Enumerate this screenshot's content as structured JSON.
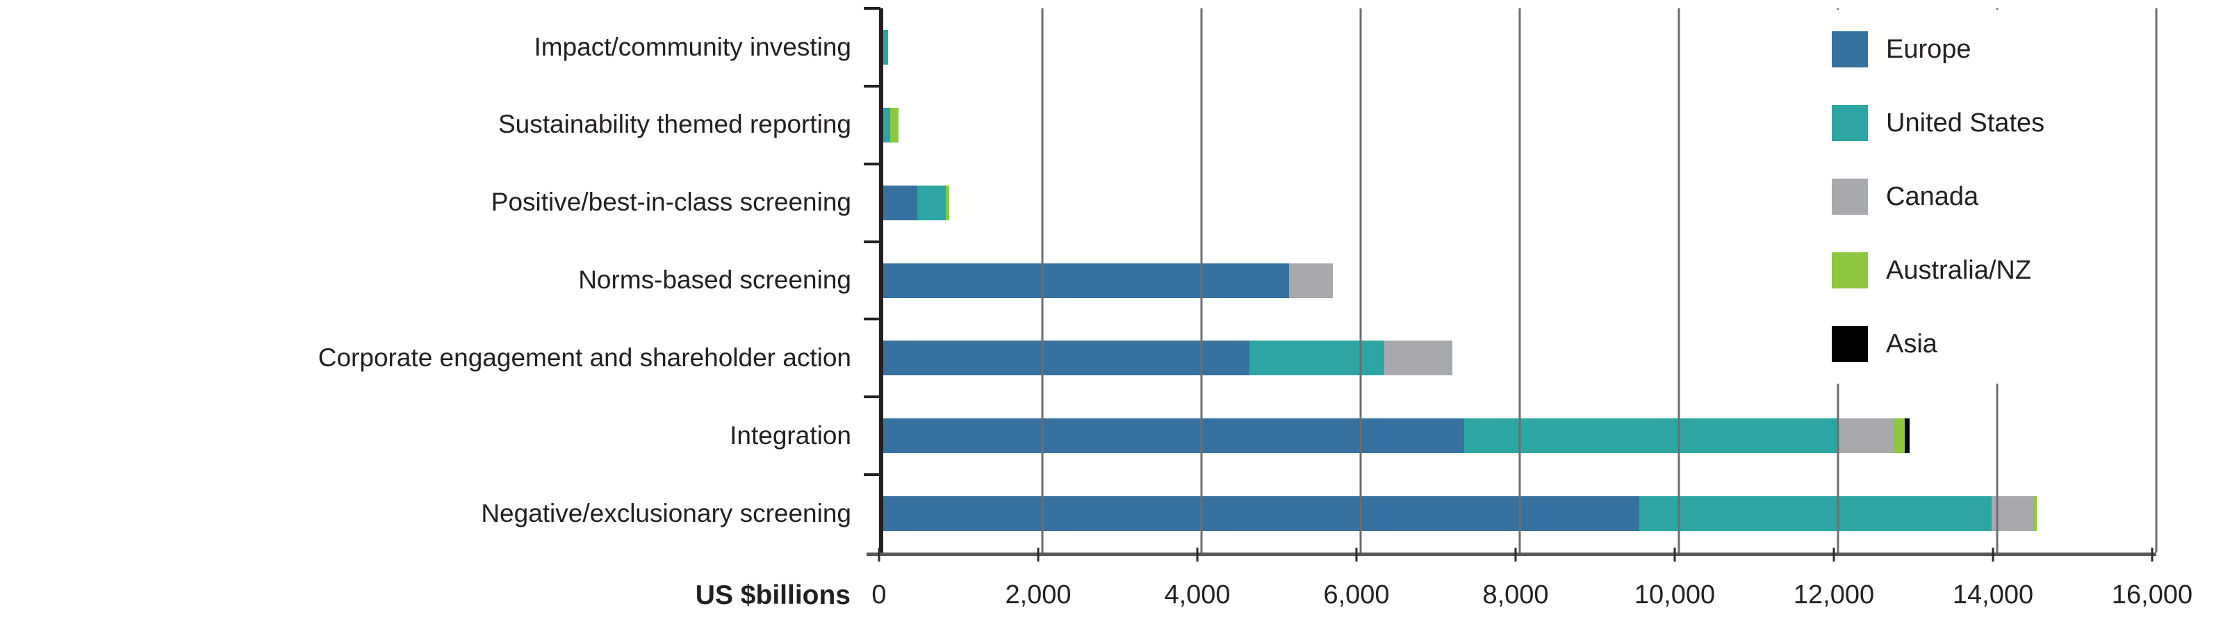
{
  "chart_data": {
    "type": "bar",
    "orientation": "horizontal-stacked",
    "title": "",
    "xlabel": "US $billions",
    "ylabel": "",
    "x_min": 0,
    "x_max": 16000,
    "x_tick_step": 2000,
    "x_ticks": [
      "0",
      "2,000",
      "4,000",
      "6,000",
      "8,000",
      "10,000",
      "12,000",
      "14,000",
      "16,000"
    ],
    "grid": true,
    "legend_position": "top-right-inside",
    "categories": [
      "Impact/community investing",
      "Sustainability themed reporting",
      "Positive/best-in-class screening",
      "Norms-based screening",
      "Corporate engagement and shareholder action",
      "Integration",
      "Negative/exclusionary screening"
    ],
    "series": [
      {
        "name": "Europe",
        "color": "#36719f",
        "values": [
          0,
          0,
          430,
          5100,
          4600,
          7300,
          9500
        ]
      },
      {
        "name": "United States",
        "color": "#2da5a2",
        "values": [
          60,
          90,
          360,
          0,
          1700,
          4700,
          4430
        ]
      },
      {
        "name": "Canada",
        "color": "#a7a9ac",
        "values": [
          0,
          0,
          0,
          550,
          850,
          700,
          520
        ]
      },
      {
        "name": "Australia/NZ",
        "color": "#8dc63f",
        "values": [
          0,
          100,
          40,
          0,
          0,
          135,
          50
        ]
      },
      {
        "name": "Asia",
        "color": "#000000",
        "values": [
          0,
          0,
          0,
          0,
          0,
          65,
          0
        ]
      }
    ],
    "totals": [
      60,
      190,
      830,
      5650,
      7150,
      12900,
      14500
    ],
    "units": "US $billions"
  },
  "colors": {
    "gridline": "#6d6e70",
    "y_axis": "#231f20",
    "x_axis": "#58595b",
    "text": "#231f20",
    "background": "#ffffff"
  }
}
